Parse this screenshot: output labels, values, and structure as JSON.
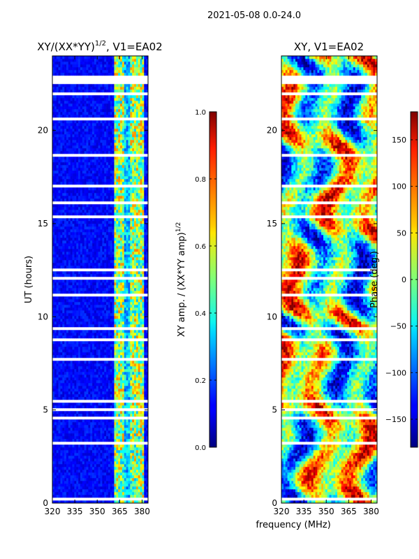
{
  "figure_title": "2021-05-08 0.0-24.0",
  "panel_left_title_base": "XY/(XX*YY)",
  "panel_left_title_exp": "1/2",
  "panel_left_title_suffix": ", V1=EA02",
  "panel_right_title": "XY, V1=EA02",
  "ylabel": "UT (hours)",
  "xlabel": "frequency (MHz)",
  "cbar_left_label_base": "XY amp. / (XX*YY amp)",
  "cbar_left_label_exp": "1/2",
  "cbar_right_label": "Phase (deg.)",
  "chart_data": [
    {
      "type": "heatmap",
      "title": "XY/(XX*YY)^1/2, V1=EA02",
      "xlabel": "",
      "ylabel": "UT (hours)",
      "xlim": [
        320,
        384
      ],
      "ylim": [
        0,
        24
      ],
      "x_ticks": [
        "320",
        "335",
        "350",
        "365",
        "380"
      ],
      "y_ticks": [
        "0",
        "5",
        "10",
        "15",
        "20"
      ],
      "colorbar": {
        "label": "XY amp. / (XX*YY amp)^1/2",
        "range": [
          0.0,
          1.0
        ],
        "ticks": [
          "0.0",
          "0.2",
          "0.4",
          "0.6",
          "0.8",
          "1.0"
        ]
      },
      "colormap": "jet"
    },
    {
      "type": "heatmap",
      "title": "XY, V1=EA02",
      "xlabel": "frequency (MHz)",
      "ylabel": "",
      "xlim": [
        320,
        384
      ],
      "ylim": [
        0,
        24
      ],
      "x_ticks": [
        "320",
        "335",
        "350",
        "365",
        "380"
      ],
      "y_ticks": [
        "0",
        "5",
        "10",
        "15",
        "20"
      ],
      "colorbar": {
        "label": "Phase (deg.)",
        "range": [
          -180,
          180
        ],
        "ticks": [
          "−150",
          "−100",
          "−50",
          "0",
          "50",
          "100",
          "150"
        ]
      },
      "colormap": "jet"
    }
  ]
}
